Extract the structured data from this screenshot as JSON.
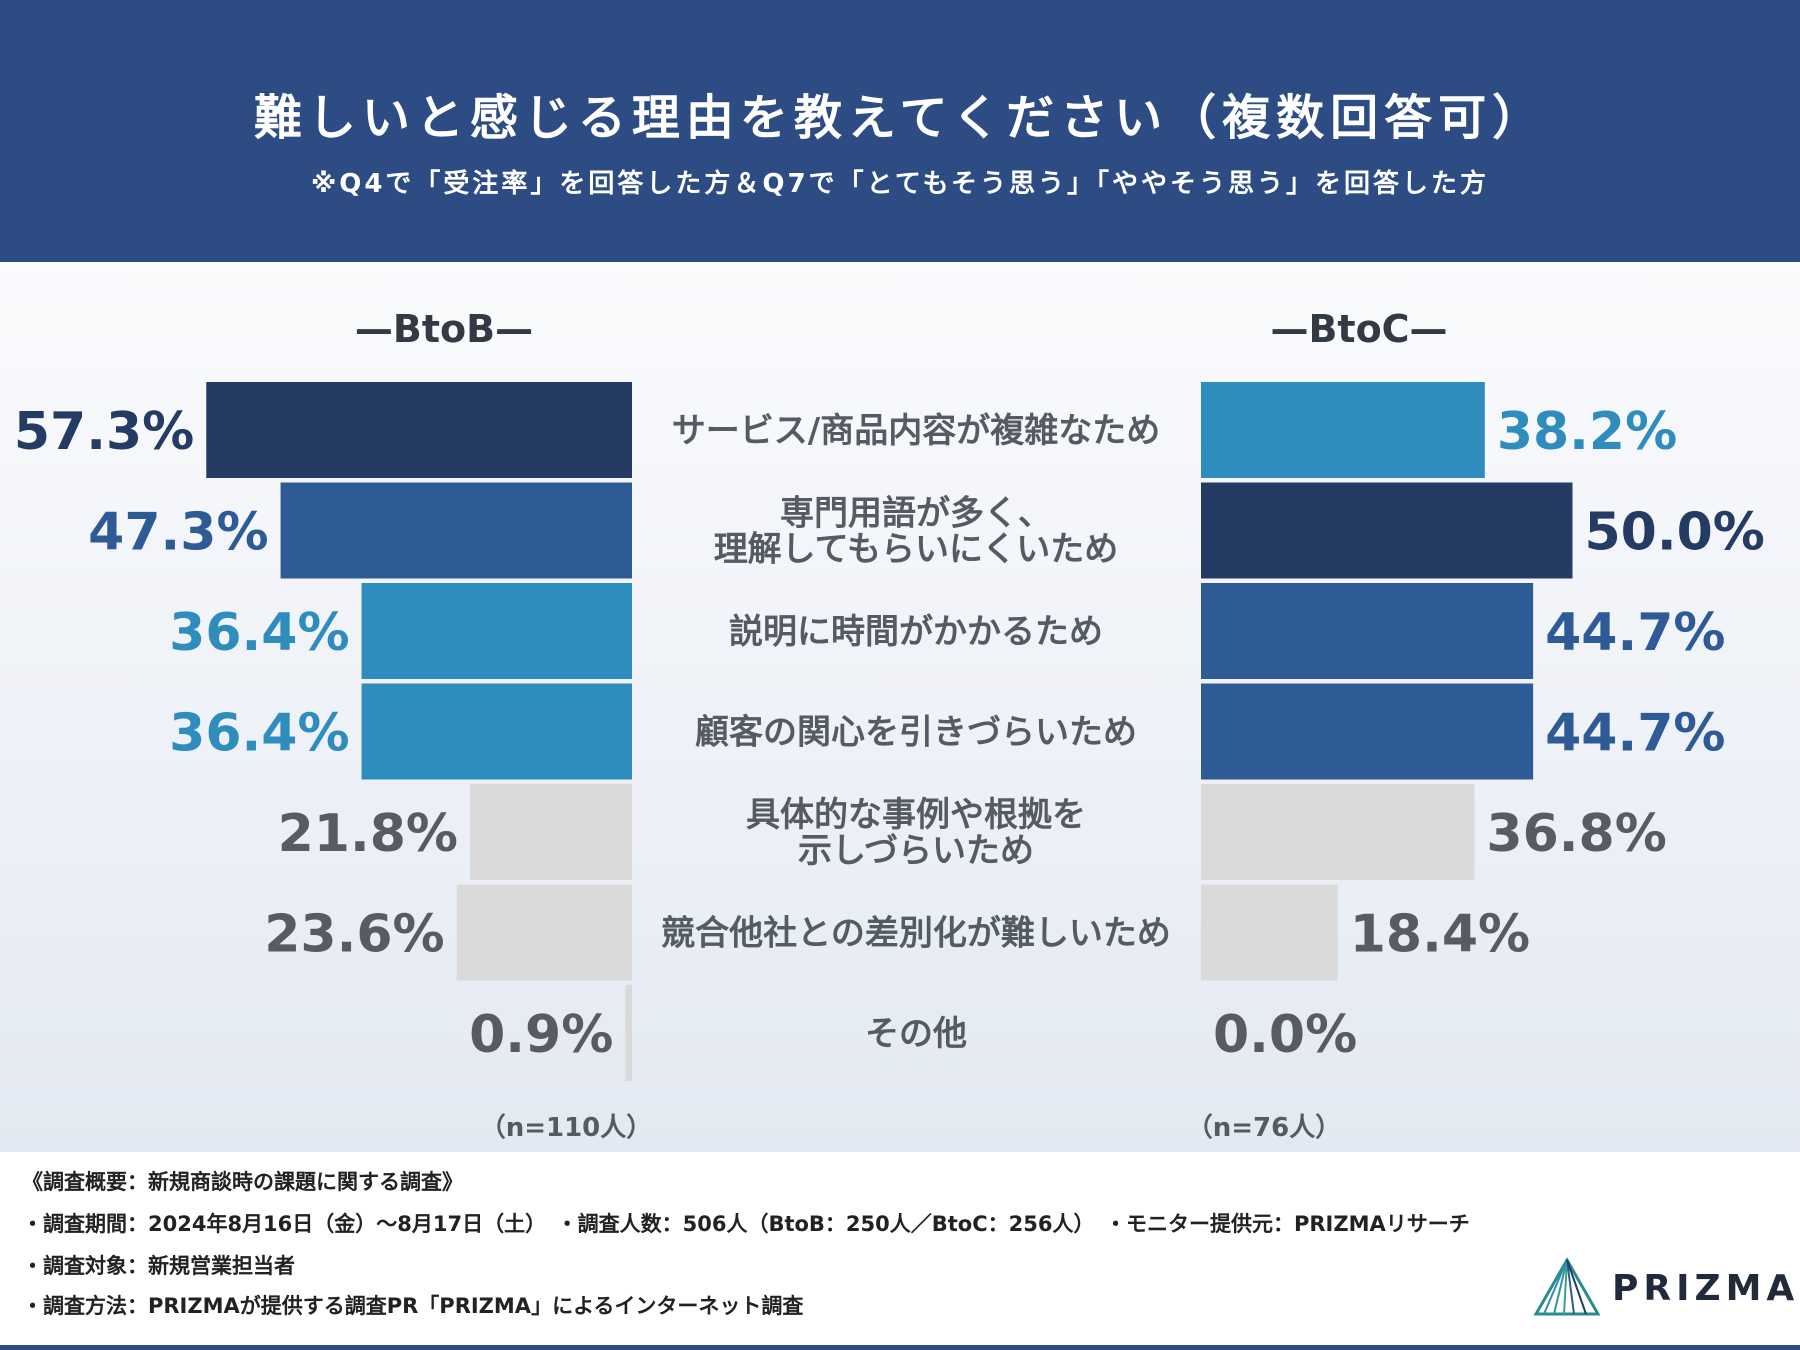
{
  "header": {
    "title": "難しいと感じる理由を教えてください（複数回答可）",
    "subtitle": "※Q4で「受注率」を回答した方＆Q7で「とてもそう思う」「ややそう思う」を回答した方"
  },
  "colors": {
    "header_bg": "#2d4c84",
    "rank1": "#243b64",
    "rank2": "#2e5b96",
    "rank3": "#2f8dbd",
    "other": "#dadada",
    "other_text": "#585c62"
  },
  "chart_data": {
    "type": "bar",
    "orientation": "horizontal-butterfly",
    "categories": [
      "サービス/商品内容が複雑なため",
      "専門用語が多く、\n理解してもらいにくいため",
      "説明に時間がかかるため",
      "顧客の関心を引きづらいため",
      "具体的な事例や根拠を\n示しづらいため",
      "競合他社との差別化が難しいため",
      "その他"
    ],
    "series": [
      {
        "name": "BtoB",
        "values": [
          57.3,
          47.3,
          36.4,
          36.4,
          21.8,
          23.6,
          0.9
        ],
        "labels": [
          "57.3%",
          "47.3%",
          "36.4%",
          "36.4%",
          "21.8%",
          "23.6%",
          "0.9%"
        ],
        "ranks": [
          1,
          2,
          3,
          3,
          0,
          0,
          0
        ],
        "n_label": "（n=110人）"
      },
      {
        "name": "BtoC",
        "values": [
          38.2,
          50.0,
          44.7,
          44.7,
          36.8,
          18.4,
          0.0
        ],
        "labels": [
          "38.2%",
          "50.0%",
          "44.7%",
          "44.7%",
          "36.8%",
          "18.4%",
          "0.0%"
        ],
        "ranks": [
          3,
          1,
          2,
          2,
          0,
          0,
          0
        ],
        "n_label": "（n=76人）"
      }
    ],
    "group_titles": [
      "—BtoB—",
      "—BtoC—"
    ]
  },
  "footer": {
    "line1": "《調査概要：新規商談時の課題に関する調査》",
    "line2": "・調査期間：2024年8月16日（金）〜8月17日（土）　・調査人数：506人（BtoB：250人／BtoC：256人）　・モニター提供元：PRIZMAリサーチ",
    "line3": "・調査対象：新規営業担当者",
    "line4": "・調査方法：PRIZMAが提供する調査PR「PRIZMA」によるインターネット調査"
  },
  "logo": {
    "text": "PRIZMA"
  }
}
